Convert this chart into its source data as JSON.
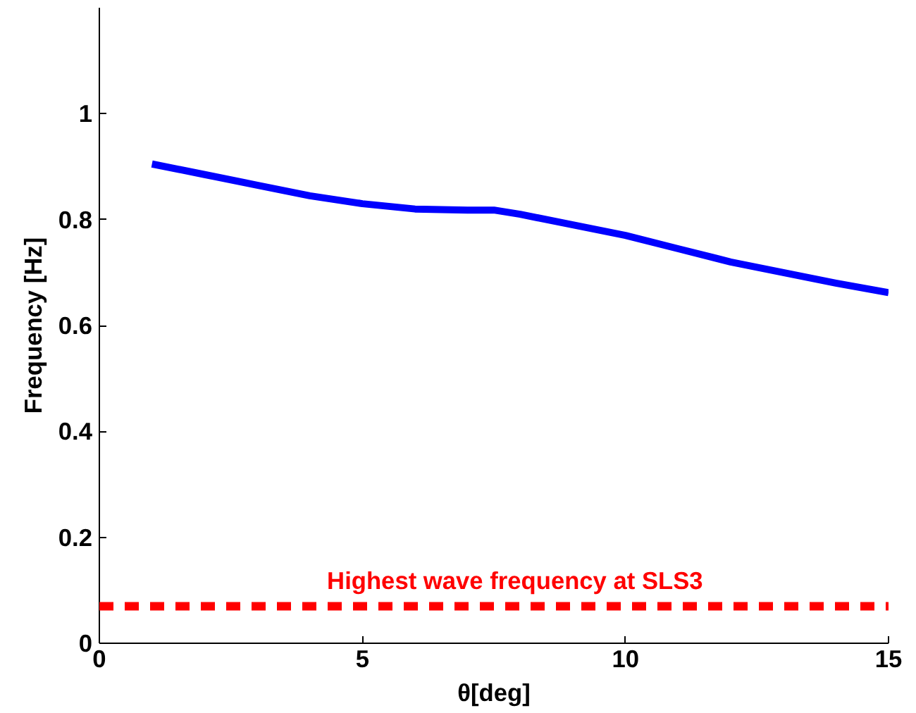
{
  "chart_data": {
    "type": "line",
    "xlabel": "θ[deg]",
    "ylabel": "Frequency [Hz]",
    "xlim": [
      0,
      15
    ],
    "xticks": [
      0,
      5,
      10,
      15
    ],
    "ylim": [
      0,
      1.2
    ],
    "yticks": [
      0,
      0.2,
      0.4,
      0.6,
      0.8,
      1
    ],
    "x": [
      1,
      2,
      3,
      4,
      5,
      6,
      7,
      7.5,
      8,
      9,
      10,
      11,
      12,
      13,
      14,
      15
    ],
    "series": [
      {
        "color": "#0000ff",
        "values": [
          0.905,
          0.885,
          0.865,
          0.845,
          0.83,
          0.82,
          0.818,
          0.818,
          0.81,
          0.79,
          0.77,
          0.745,
          0.72,
          0.7,
          0.68,
          0.662
        ]
      }
    ],
    "ref_lines": [
      {
        "axis": "y",
        "value": 0.07,
        "label": "Highest wave frequency at SLS3",
        "color": "#ff0000",
        "line_style": "dashed"
      }
    ],
    "grid": false,
    "line_style": "solid",
    "marker": "none"
  }
}
